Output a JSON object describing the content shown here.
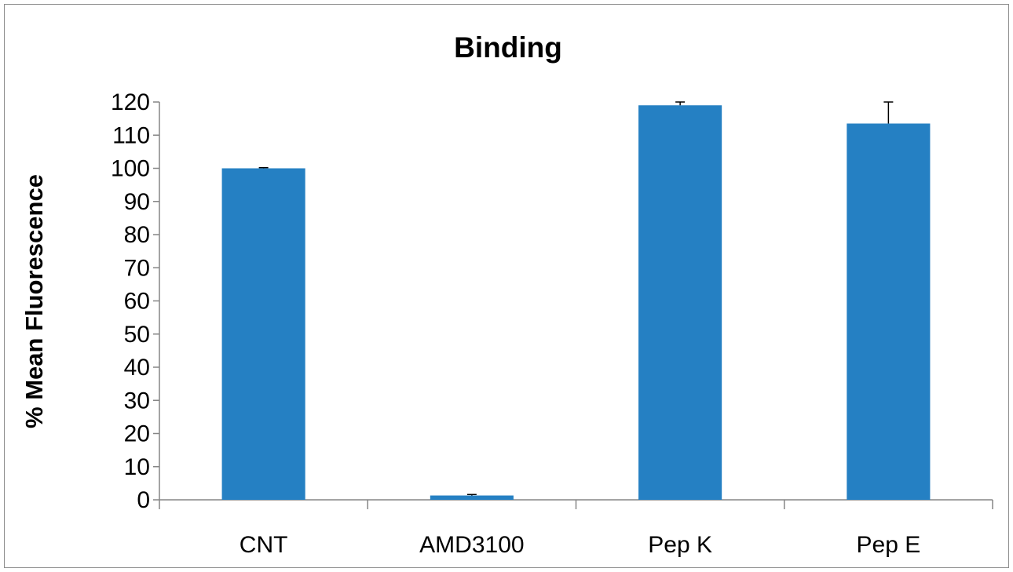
{
  "chart_data": {
    "type": "bar",
    "title": "Binding",
    "xlabel": "",
    "ylabel": "% Mean Fluorescence",
    "categories": [
      "CNT",
      "AMD3100",
      "Pep K",
      "Pep E"
    ],
    "values": [
      100,
      1.3,
      119,
      113.5
    ],
    "error_bars": [
      0.2,
      0.3,
      1.0,
      6.5
    ],
    "ylim": [
      0,
      120
    ],
    "yticks": [
      0,
      10,
      20,
      30,
      40,
      50,
      60,
      70,
      80,
      90,
      100,
      110,
      120
    ],
    "grid": false,
    "legend": "none",
    "bar_color": "#2580c3"
  }
}
